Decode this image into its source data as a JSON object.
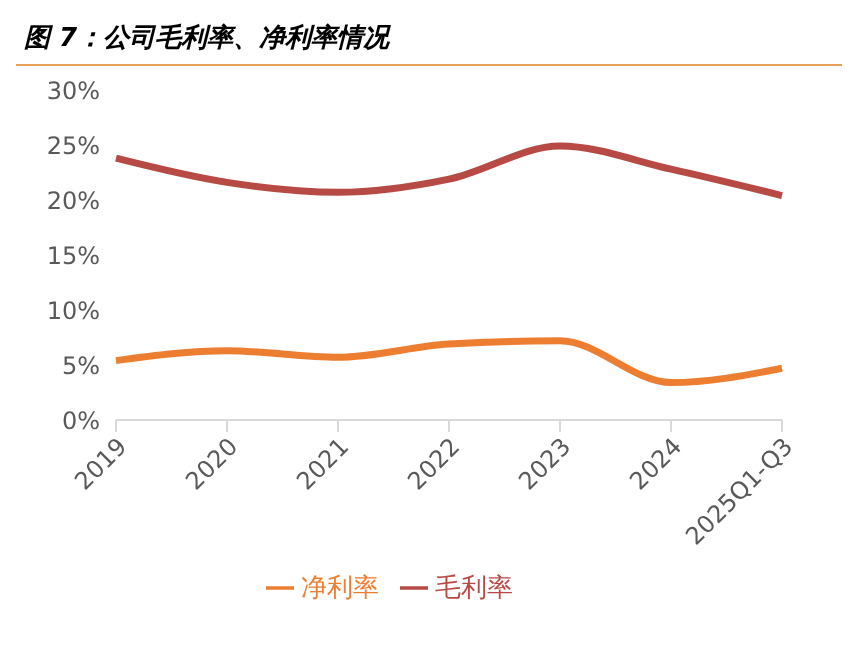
{
  "chart_data": {
    "type": "line",
    "title": "图 7：公司毛利率、净利率情况",
    "categories": [
      "2019",
      "2020",
      "2021",
      "2022",
      "2023",
      "2024",
      "2025Q1-Q3"
    ],
    "series": [
      {
        "name": "毛利率",
        "color": "#b84a45",
        "values": [
          23.8,
          21.6,
          20.7,
          21.9,
          24.9,
          22.8,
          20.4
        ]
      },
      {
        "name": "净利率",
        "color": "#ed7d31",
        "values": [
          5.4,
          6.3,
          5.7,
          6.9,
          7.2,
          3.4,
          4.7
        ]
      }
    ],
    "ylim": [
      0,
      30
    ],
    "yticks": [
      {
        "value": 0,
        "label": "0%"
      },
      {
        "value": 5,
        "label": "5%"
      },
      {
        "value": 10,
        "label": "10%"
      },
      {
        "value": 15,
        "label": "15%"
      },
      {
        "value": 20,
        "label": "20%"
      },
      {
        "value": 25,
        "label": "25%"
      },
      {
        "value": 30,
        "label": "30%"
      }
    ],
    "grid": false,
    "legend": "bottom",
    "marker": "none",
    "line_style": "solid"
  }
}
